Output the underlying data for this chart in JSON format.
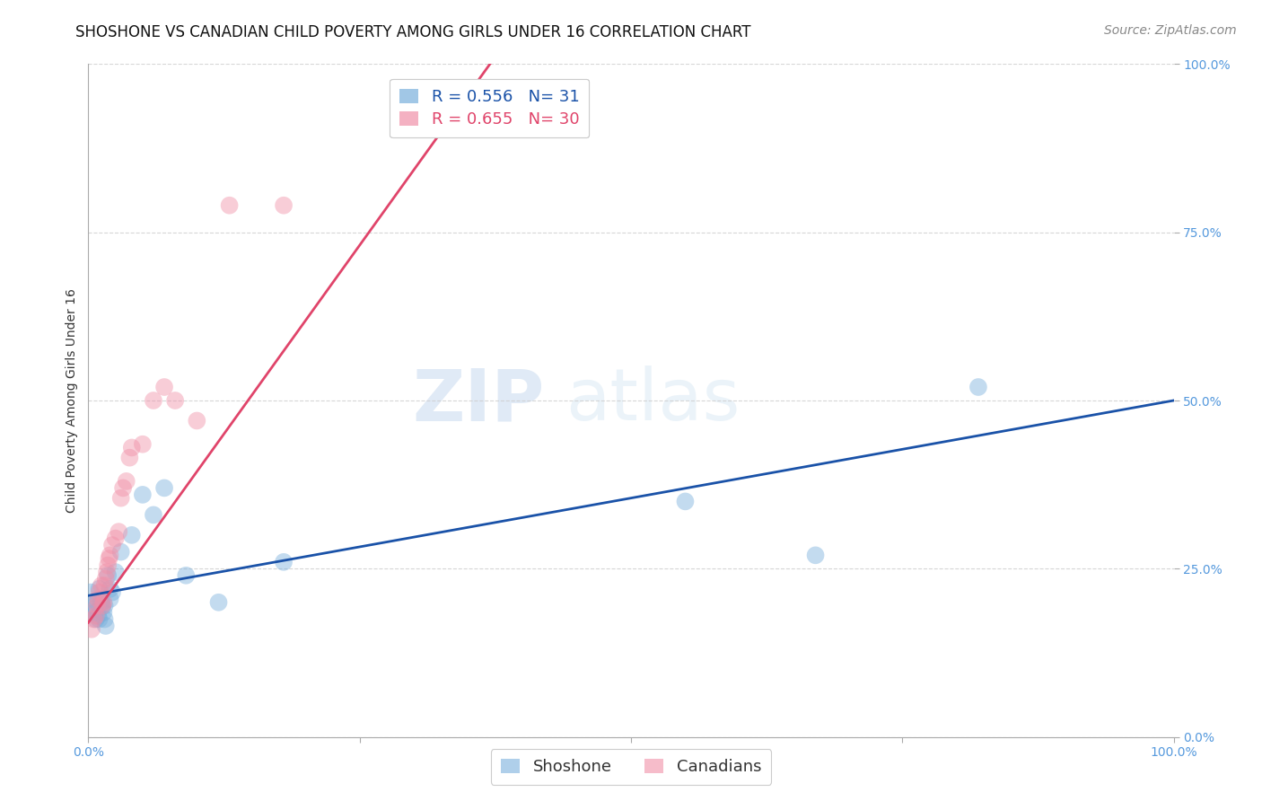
{
  "title": "SHOSHONE VS CANADIAN CHILD POVERTY AMONG GIRLS UNDER 16 CORRELATION CHART",
  "source": "Source: ZipAtlas.com",
  "ylabel": "Child Poverty Among Girls Under 16",
  "watermark_zip": "ZIP",
  "watermark_atlas": "atlas",
  "shoshone_R": 0.556,
  "shoshone_N": 31,
  "canadian_R": 0.655,
  "canadian_N": 30,
  "xlim": [
    0,
    1
  ],
  "ylim": [
    0,
    1
  ],
  "xticks": [
    0,
    0.25,
    0.5,
    0.75,
    1.0
  ],
  "yticks": [
    0,
    0.25,
    0.5,
    0.75,
    1.0
  ],
  "xticklabels": [
    "0.0%",
    "",
    "",
    "",
    "100.0%"
  ],
  "yticklabels_right": [
    "0.0%",
    "25.0%",
    "50.0%",
    "75.0%",
    "100.0%"
  ],
  "shoshone_color": "#7ab0dc",
  "canadian_color": "#f090a8",
  "shoshone_line_color": "#1a52a8",
  "canadian_line_color": "#e0446a",
  "background_color": "#ffffff",
  "grid_color": "#cccccc",
  "shoshone_x": [
    0.002,
    0.003,
    0.005,
    0.006,
    0.007,
    0.008,
    0.009,
    0.01,
    0.01,
    0.012,
    0.013,
    0.014,
    0.015,
    0.015,
    0.016,
    0.018,
    0.02,
    0.02,
    0.022,
    0.025,
    0.03,
    0.04,
    0.05,
    0.06,
    0.07,
    0.09,
    0.12,
    0.18,
    0.55,
    0.67,
    0.82
  ],
  "shoshone_y": [
    0.215,
    0.195,
    0.19,
    0.185,
    0.175,
    0.2,
    0.18,
    0.22,
    0.175,
    0.2,
    0.195,
    0.185,
    0.195,
    0.175,
    0.165,
    0.24,
    0.205,
    0.22,
    0.215,
    0.245,
    0.275,
    0.3,
    0.36,
    0.33,
    0.37,
    0.24,
    0.2,
    0.26,
    0.35,
    0.27,
    0.52
  ],
  "canadian_x": [
    0.003,
    0.005,
    0.007,
    0.008,
    0.009,
    0.01,
    0.012,
    0.013,
    0.014,
    0.015,
    0.016,
    0.017,
    0.018,
    0.019,
    0.02,
    0.022,
    0.025,
    0.028,
    0.03,
    0.032,
    0.035,
    0.038,
    0.04,
    0.05,
    0.06,
    0.07,
    0.08,
    0.1,
    0.13,
    0.18
  ],
  "canadian_y": [
    0.16,
    0.175,
    0.18,
    0.195,
    0.205,
    0.215,
    0.225,
    0.195,
    0.2,
    0.225,
    0.235,
    0.245,
    0.255,
    0.265,
    0.27,
    0.285,
    0.295,
    0.305,
    0.355,
    0.37,
    0.38,
    0.415,
    0.43,
    0.435,
    0.5,
    0.52,
    0.5,
    0.47,
    0.79,
    0.79
  ],
  "marker_size": 200,
  "marker_alpha": 0.45,
  "title_fontsize": 12,
  "axis_label_fontsize": 10,
  "tick_fontsize": 10,
  "legend_fontsize": 13,
  "source_fontsize": 10,
  "shoshone_line_x0": 0.0,
  "shoshone_line_y0": 0.21,
  "shoshone_line_x1": 1.0,
  "shoshone_line_y1": 0.5,
  "canadian_line_x0": 0.0,
  "canadian_line_y0": 0.17,
  "canadian_line_x1": 0.37,
  "canadian_line_y1": 1.0
}
